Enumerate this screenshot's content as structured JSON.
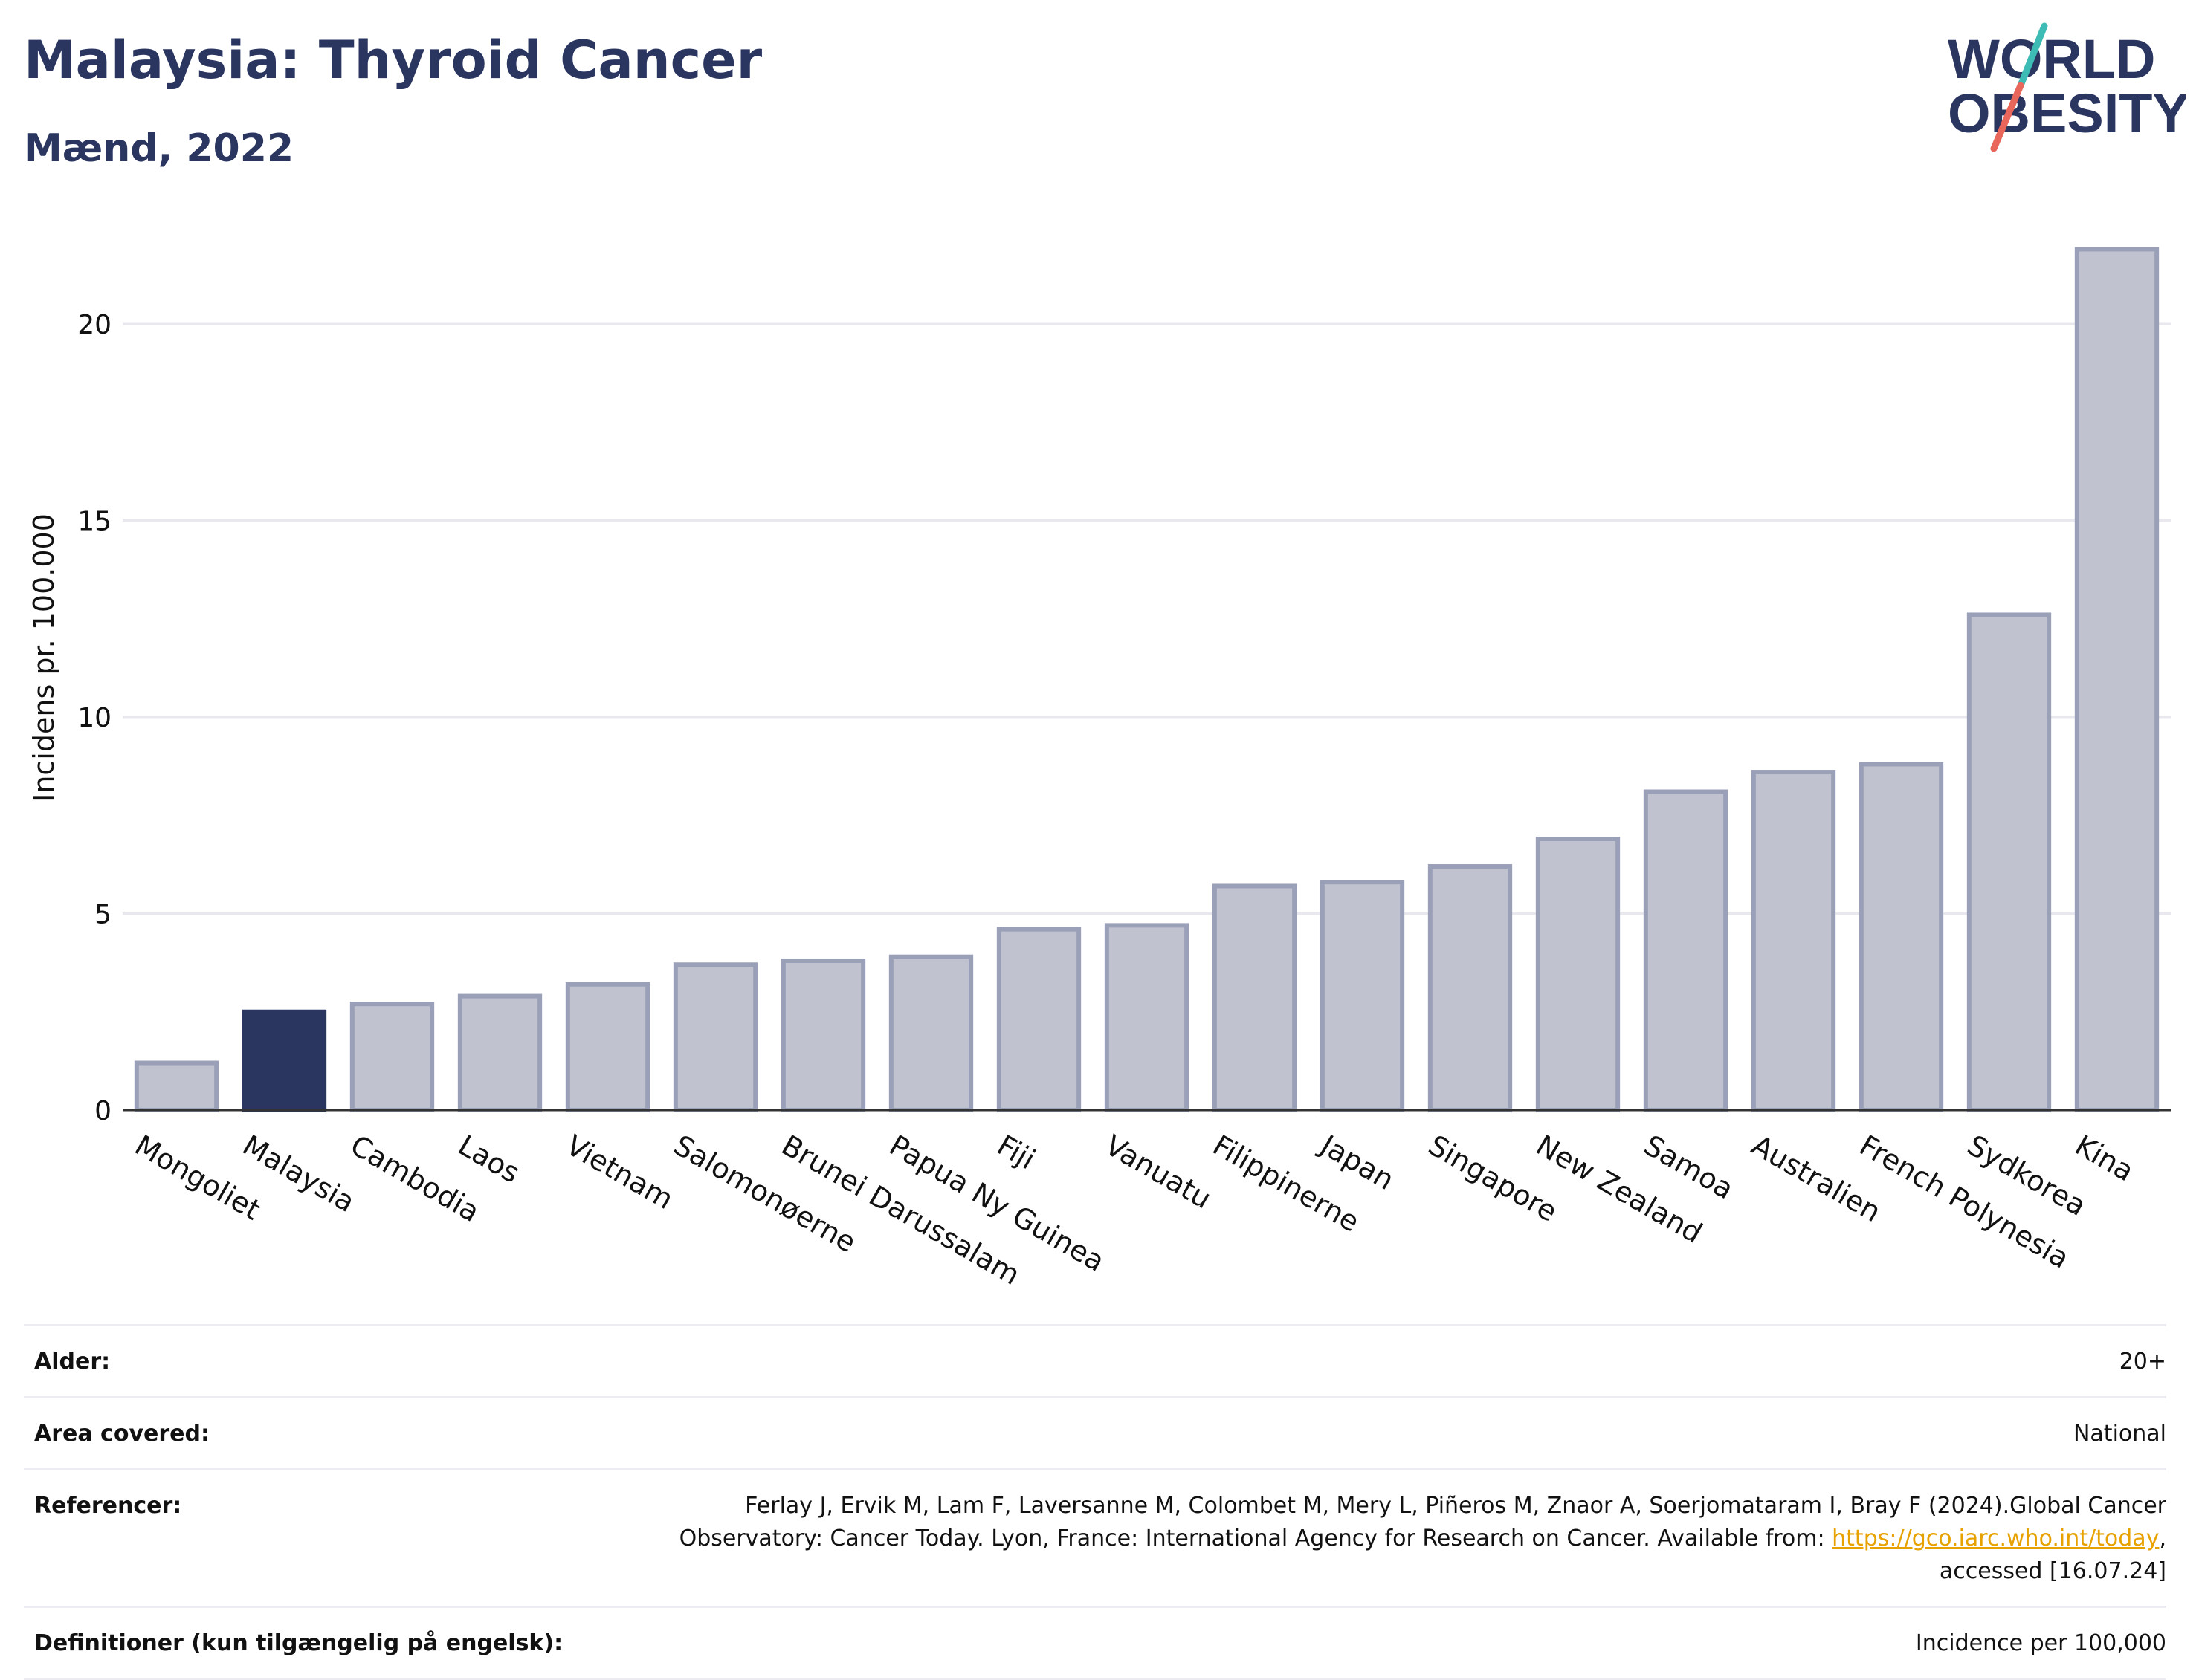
{
  "header": {
    "title": "Malaysia: Thyroid Cancer",
    "subtitle": "Mænd, 2022",
    "logo_line1": "WORLD",
    "logo_line2": "OBESITY"
  },
  "colors": {
    "highlight": "#2a3560",
    "bar_fill": "#c0c3cf",
    "bar_stroke": "#9aa0b8",
    "grid": "#e8e8ee",
    "logo_teal": "#3cbcb4",
    "logo_red": "#e8675a",
    "link": "#e8a200"
  },
  "chart_data": {
    "type": "bar",
    "ylabel": "Incidens pr. 100.000",
    "xlabel": "",
    "ylim": [
      0,
      22.5
    ],
    "yticks": [
      0,
      5,
      10,
      15,
      20
    ],
    "grid": true,
    "highlight": "Malaysia",
    "categories": [
      "Mongoliet",
      "Malaysia",
      "Cambodia",
      "Laos",
      "Vietnam",
      "Salomonøerne",
      "Brunei Darussalam",
      "Papua Ny Guinea",
      "Fiji",
      "Vanuatu",
      "Filippinerne",
      "Japan",
      "Singapore",
      "New Zealand",
      "Samoa",
      "Australien",
      "French Polynesia",
      "Sydkorea",
      "Kina"
    ],
    "values": [
      1.2,
      2.5,
      2.7,
      2.9,
      3.2,
      3.7,
      3.8,
      3.9,
      4.6,
      4.7,
      5.7,
      5.8,
      6.2,
      6.9,
      8.1,
      8.6,
      8.8,
      12.6,
      21.9
    ]
  },
  "info": {
    "rows": [
      {
        "label": "Alder:",
        "value": "20+"
      },
      {
        "label": "Area covered:",
        "value": "National"
      },
      {
        "label": "Referencer:",
        "value": "Ferlay J, Ervik M, Lam F, Laversanne M, Colombet M, Mery L, Piñeros M, Znaor A, Soerjomataram I, Bray F (2024).Global Cancer Observatory: Cancer Today. Lyon, France: International Agency for Research on Cancer. Available from: ",
        "link": "https://gco.iarc.who.int/today",
        "suffix": ", accessed [16.07.24]"
      },
      {
        "label": "Definitioner (kun tilgængelig på engelsk):",
        "value": "Incidence per 100,000"
      }
    ]
  }
}
